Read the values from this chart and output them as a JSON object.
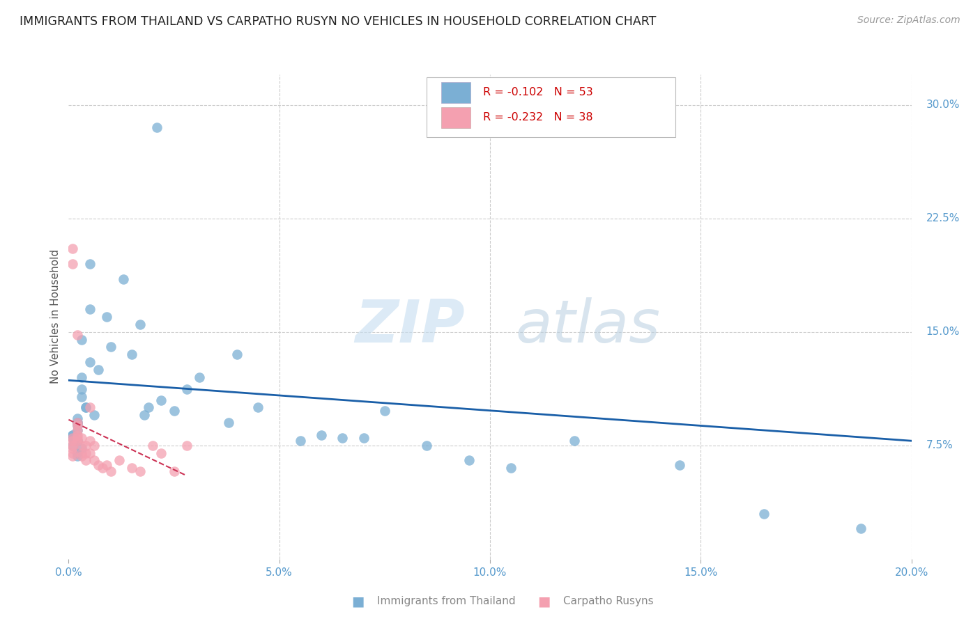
{
  "title": "IMMIGRANTS FROM THAILAND VS CARPATHO RUSYN NO VEHICLES IN HOUSEHOLD CORRELATION CHART",
  "source": "Source: ZipAtlas.com",
  "ylabel": "No Vehicles in Household",
  "xlim": [
    0.0,
    0.2
  ],
  "ylim": [
    0.0,
    0.32
  ],
  "xticks": [
    0.0,
    0.05,
    0.1,
    0.15,
    0.2
  ],
  "xtick_labels": [
    "0.0%",
    "5.0%",
    "10.0%",
    "15.0%",
    "20.0%"
  ],
  "yticks_right": [
    0.075,
    0.15,
    0.225,
    0.3
  ],
  "ytick_right_labels": [
    "7.5%",
    "15.0%",
    "22.5%",
    "30.0%"
  ],
  "grid_color": "#cccccc",
  "background_color": "#ffffff",
  "blue_color": "#7bafd4",
  "pink_color": "#f4a0b0",
  "blue_line_color": "#1a5fa8",
  "pink_line_color": "#cc3355",
  "legend_R1": "-0.102",
  "legend_N1": "53",
  "legend_R2": "-0.232",
  "legend_N2": "38",
  "label1": "Immigrants from Thailand",
  "label2": "Carpatho Rusyns",
  "watermark_zip": "ZIP",
  "watermark_atlas": "atlas",
  "title_color": "#222222",
  "axis_tick_color": "#5599cc",
  "ylabel_color": "#555555",
  "blue_scatter_x": [
    0.021,
    0.005,
    0.013,
    0.005,
    0.009,
    0.017,
    0.003,
    0.01,
    0.015,
    0.005,
    0.007,
    0.003,
    0.003,
    0.003,
    0.004,
    0.004,
    0.006,
    0.002,
    0.002,
    0.002,
    0.002,
    0.002,
    0.001,
    0.001,
    0.001,
    0.001,
    0.002,
    0.002,
    0.001,
    0.003,
    0.002,
    0.002,
    0.031,
    0.028,
    0.022,
    0.019,
    0.025,
    0.018,
    0.04,
    0.045,
    0.038,
    0.06,
    0.07,
    0.055,
    0.075,
    0.065,
    0.085,
    0.095,
    0.105,
    0.12,
    0.145,
    0.165,
    0.188
  ],
  "blue_scatter_y": [
    0.285,
    0.195,
    0.185,
    0.165,
    0.16,
    0.155,
    0.145,
    0.14,
    0.135,
    0.13,
    0.125,
    0.12,
    0.112,
    0.107,
    0.1,
    0.1,
    0.095,
    0.093,
    0.09,
    0.09,
    0.088,
    0.085,
    0.082,
    0.082,
    0.08,
    0.08,
    0.078,
    0.078,
    0.075,
    0.073,
    0.07,
    0.068,
    0.12,
    0.112,
    0.105,
    0.1,
    0.098,
    0.095,
    0.135,
    0.1,
    0.09,
    0.082,
    0.08,
    0.078,
    0.098,
    0.08,
    0.075,
    0.065,
    0.06,
    0.078,
    0.062,
    0.03,
    0.02
  ],
  "pink_scatter_x": [
    0.001,
    0.001,
    0.001,
    0.001,
    0.001,
    0.001,
    0.001,
    0.001,
    0.002,
    0.002,
    0.002,
    0.002,
    0.002,
    0.002,
    0.002,
    0.003,
    0.003,
    0.003,
    0.003,
    0.004,
    0.004,
    0.004,
    0.005,
    0.005,
    0.005,
    0.006,
    0.006,
    0.007,
    0.008,
    0.009,
    0.01,
    0.012,
    0.015,
    0.017,
    0.02,
    0.022,
    0.025,
    0.028
  ],
  "pink_scatter_y": [
    0.205,
    0.195,
    0.08,
    0.078,
    0.075,
    0.073,
    0.07,
    0.068,
    0.148,
    0.09,
    0.088,
    0.085,
    0.082,
    0.08,
    0.078,
    0.08,
    0.075,
    0.07,
    0.068,
    0.075,
    0.07,
    0.065,
    0.1,
    0.078,
    0.07,
    0.075,
    0.065,
    0.062,
    0.06,
    0.062,
    0.058,
    0.065,
    0.06,
    0.058,
    0.075,
    0.07,
    0.058,
    0.075
  ],
  "blue_trendline_x": [
    0.0,
    0.2
  ],
  "blue_trendline_y": [
    0.118,
    0.078
  ],
  "pink_trendline_x": [
    0.0,
    0.028
  ],
  "pink_trendline_y": [
    0.092,
    0.055
  ]
}
